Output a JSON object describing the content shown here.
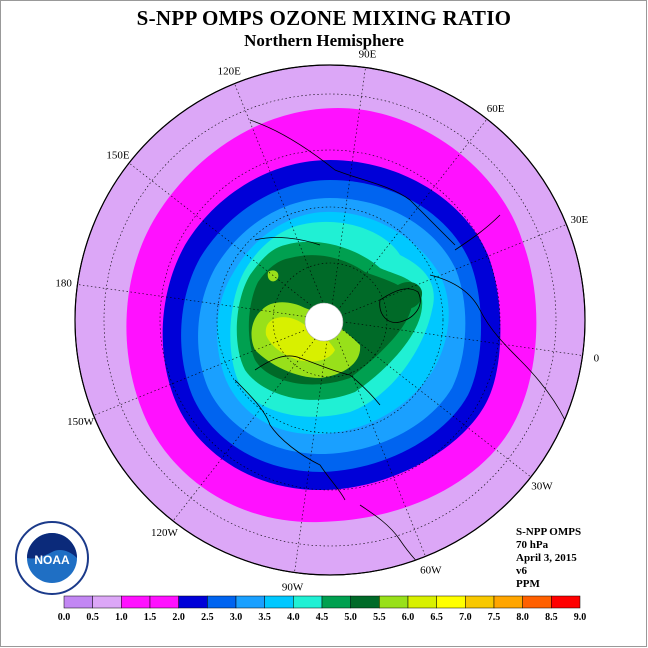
{
  "title": "S-NPP OMPS OZONE MIXING RATIO",
  "subtitle": "Northern Hemisphere",
  "longitude_labels": [
    {
      "label": "90E",
      "lon": 90
    },
    {
      "label": "60E",
      "lon": 60
    },
    {
      "label": "30E",
      "lon": 30
    },
    {
      "label": "0",
      "lon": 0
    },
    {
      "label": "30W",
      "lon": -30
    },
    {
      "label": "60W",
      "lon": -60
    },
    {
      "label": "90W",
      "lon": -90
    },
    {
      "label": "120W",
      "lon": -120
    },
    {
      "label": "150W",
      "lon": -150
    },
    {
      "label": "180",
      "lon": 180
    },
    {
      "label": "150E",
      "lon": 150
    },
    {
      "label": "120E",
      "lon": 120
    }
  ],
  "info": {
    "instrument": "S-NPP OMPS",
    "level": "70 hPa",
    "date": "April 3, 2015",
    "version": "v6",
    "units": "PPM"
  },
  "logo_text": "NOAA",
  "colorbar": {
    "ticks": [
      "0.0",
      "0.5",
      "1.0",
      "1.5",
      "2.0",
      "2.5",
      "3.0",
      "3.5",
      "4.0",
      "4.5",
      "5.0",
      "5.5",
      "6.0",
      "6.5",
      "7.0",
      "7.5",
      "8.0",
      "8.5",
      "9.0"
    ],
    "colors": [
      "#c287f3",
      "#dca7f7",
      "#ff11ff",
      "#ff11ff",
      "#0000d8",
      "#0064f0",
      "#1aa0ff",
      "#00c8ff",
      "#20f0d4",
      "#00a050",
      "#006a28",
      "#98e01a",
      "#d8f000",
      "#ffff00",
      "#f8c800",
      "#ffa500",
      "#ff6000",
      "#ff0000",
      "#8b5a2b"
    ]
  },
  "map": {
    "contour_levels_ppm": [
      1.0,
      1.5,
      2.0,
      2.5,
      3.0,
      3.5,
      4.0,
      4.5,
      5.0,
      5.5,
      6.0
    ],
    "background_level_ppm": 0.5
  }
}
